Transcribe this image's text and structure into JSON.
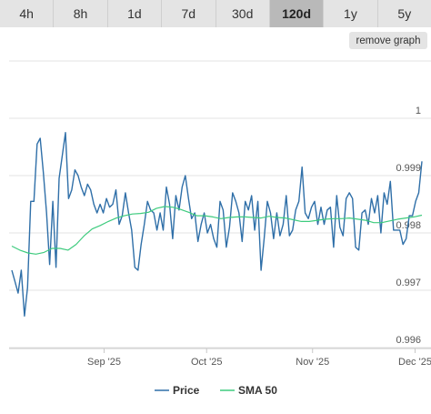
{
  "tabs": [
    {
      "label": "4h",
      "active": false
    },
    {
      "label": "8h",
      "active": false
    },
    {
      "label": "1d",
      "active": false
    },
    {
      "label": "7d",
      "active": false
    },
    {
      "label": "30d",
      "active": false
    },
    {
      "label": "120d",
      "active": true
    },
    {
      "label": "1y",
      "active": false
    },
    {
      "label": "5y",
      "active": false
    }
  ],
  "remove_graph_label": "remove graph",
  "chart_data": {
    "type": "line",
    "ylim": [
      0.996,
      1.0
    ],
    "y_ticks": [
      0.996,
      0.997,
      0.998,
      0.999,
      1
    ],
    "y_tick_labels": [
      "0.996",
      "0.997",
      "0.998",
      "0.999",
      "1"
    ],
    "x_ticks": [
      {
        "label": "Sep '25",
        "day": 27
      },
      {
        "label": "Oct '25",
        "day": 57
      },
      {
        "label": "Nov '25",
        "day": 88
      },
      {
        "label": "Dec '25",
        "day": 118
      }
    ],
    "x_range_days": [
      0,
      120
    ],
    "grid": true,
    "legend_position": "bottom",
    "series": [
      {
        "name": "Price",
        "color": "#2f6fa8",
        "values": [
          0.99735,
          0.99715,
          0.99695,
          0.99735,
          0.99655,
          0.99705,
          0.99855,
          0.99855,
          0.99955,
          0.99965,
          0.99905,
          0.99835,
          0.99745,
          0.99855,
          0.9974,
          0.99895,
          0.99935,
          0.99975,
          0.9986,
          0.99875,
          0.9991,
          0.999,
          0.9988,
          0.99865,
          0.99885,
          0.99875,
          0.9985,
          0.99835,
          0.9985,
          0.99835,
          0.9986,
          0.99845,
          0.9985,
          0.99875,
          0.99815,
          0.9983,
          0.9987,
          0.99835,
          0.99805,
          0.9974,
          0.99735,
          0.9978,
          0.99815,
          0.99855,
          0.9984,
          0.99835,
          0.99805,
          0.99835,
          0.99805,
          0.9988,
          0.9985,
          0.9979,
          0.99865,
          0.9984,
          0.9988,
          0.999,
          0.9986,
          0.99825,
          0.99835,
          0.99785,
          0.99815,
          0.99835,
          0.998,
          0.99815,
          0.9979,
          0.99775,
          0.99855,
          0.9984,
          0.99775,
          0.9981,
          0.9987,
          0.99855,
          0.99835,
          0.99785,
          0.99855,
          0.9984,
          0.99865,
          0.99805,
          0.99855,
          0.99735,
          0.9979,
          0.99855,
          0.99835,
          0.9979,
          0.99835,
          0.99795,
          0.99815,
          0.99865,
          0.99795,
          0.99805,
          0.9984,
          0.99855,
          0.99915,
          0.99835,
          0.99825,
          0.99845,
          0.99855,
          0.99815,
          0.99845,
          0.99815,
          0.9984,
          0.99845,
          0.99775,
          0.99865,
          0.9981,
          0.99795,
          0.9986,
          0.9987,
          0.9986,
          0.99775,
          0.9977,
          0.99835,
          0.9984,
          0.99815,
          0.9986,
          0.99835,
          0.99865,
          0.998,
          0.9987,
          0.9985,
          0.9989,
          0.99805,
          0.99805,
          0.99805,
          0.9978,
          0.9979,
          0.9983,
          0.9983,
          0.99855,
          0.9987,
          0.99925
        ]
      },
      {
        "name": "SMA 50",
        "color": "#3ecb7e",
        "values": [
          0.99777,
          0.9977,
          0.99765,
          0.99763,
          0.99766,
          0.99773,
          0.99773,
          0.9977,
          0.9978,
          0.99795,
          0.99807,
          0.99813,
          0.9982,
          0.99826,
          0.9983,
          0.99833,
          0.99834,
          0.99836,
          0.99843,
          0.99846,
          0.99845,
          0.99841,
          0.99836,
          0.9983,
          0.9983,
          0.99828,
          0.99825,
          0.99827,
          0.99828,
          0.99828,
          0.99827,
          0.99826,
          0.99829,
          0.99827,
          0.99826,
          0.99823,
          0.9982,
          0.9982,
          0.99822,
          0.99824,
          0.99825,
          0.99825,
          0.99826,
          0.99824,
          0.99822,
          0.99818,
          0.99818,
          0.99821,
          0.99824,
          0.99826,
          0.99828,
          0.99831
        ]
      }
    ]
  }
}
